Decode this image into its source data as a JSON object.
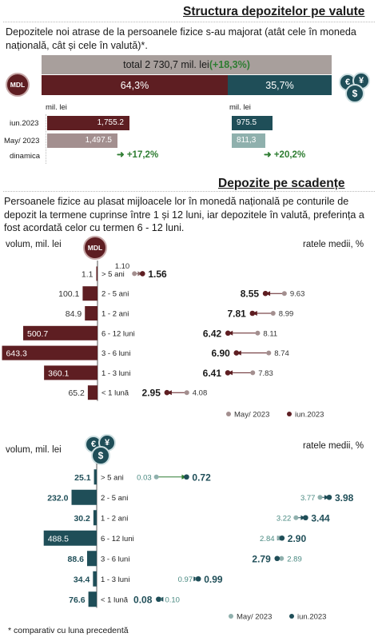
{
  "section1": {
    "title": "Structura depozitelor pe valute",
    "intro": "Depozitele noi atrase de la persoanele fizice s-au majorat (atât cele în moneda națională, cât și cele în valută)*.",
    "total_label": "total 2 730,7 mil. lei ",
    "total_change": "(+18,3%)",
    "mdl_share": "64,3%",
    "fx_share": "35,7%",
    "mdl_share_value": 64.3,
    "fx_share_value": 35.7,
    "mdl_badge": "MDL",
    "fx_badge_1": "€",
    "fx_badge_2": "¥",
    "fx_badge_3": "$",
    "unit_left": "mil. lei",
    "unit_right": "mil. lei",
    "row_labels": [
      "iun.2023",
      "May/ 2023",
      "dinamica"
    ],
    "mdl_values": [
      "1,755.2",
      "1,497.5"
    ],
    "fx_values": [
      "975.5",
      "811,3"
    ],
    "mdl_dynamic": "+17,2%",
    "fx_dynamic": "+20,2%"
  },
  "section2": {
    "title": "Depozite pe scadențe",
    "intro": "Persoanele fizice au plasat mijloacele lor în monedă națională pe conturile de depozit la termene cuprinse între 1 și 12 luni, iar depozitele în valută, preferința a fost acordată celor cu termen 6 - 12 luni.",
    "volume_label": "volum, mil. lei",
    "rate_label": "ratele medii, %",
    "mdl_badge": "MDL",
    "fx_badge_1": "€",
    "fx_badge_2": "¥",
    "fx_badge_3": "$",
    "legend_may": "May/ 2023",
    "legend_jun": "iun.2023",
    "footnote": "* comparativ cu luna precedentă"
  },
  "colors": {
    "mdl_dark": "#5e1e22",
    "mdl_light": "#a38f8f",
    "fx_dark": "#1f4e58",
    "fx_light": "#8fb0ad",
    "total_bar": "#a89f9c",
    "green": "#2e7d32"
  },
  "chart_data": [
    {
      "type": "bar",
      "title": "",
      "categories": [
        "> 5 ani",
        "2 - 5 ani",
        "1 - 2 ani",
        "6 - 12 luni",
        "3 - 6 luni",
        "1 - 3 luni",
        "< 1 lună"
      ],
      "values": [
        1.1,
        100.1,
        84.9,
        500.7,
        643.3,
        360.1,
        65.2
      ],
      "value_labels": [
        "1.1",
        "100.1",
        "84.9",
        "500.7",
        "643.3",
        "360.1",
        "65.2"
      ],
      "xlabel": "volum, mil. lei",
      "xlim": [
        0,
        700
      ]
    },
    {
      "type": "scatter",
      "title": "",
      "categories": [
        "> 5 ani",
        "2 - 5 ani",
        "1 - 2 ani",
        "6 - 12 luni",
        "3 - 6 luni",
        "1 - 3 luni",
        "< 1 lună"
      ],
      "xlabel": "ratele medii, %",
      "xlim": [
        0.5,
        10.5
      ],
      "series": [
        {
          "name": "May/ 2023",
          "values": [
            1.1,
            9.63,
            8.99,
            8.11,
            8.74,
            7.83,
            4.08
          ],
          "labels": [
            "1.10",
            "9.63",
            "8.99",
            "8.11",
            "8.74",
            "7.83",
            "4.08"
          ]
        },
        {
          "name": "iun.2023",
          "values": [
            1.56,
            8.55,
            7.81,
            6.42,
            6.9,
            6.41,
            2.95
          ],
          "labels": [
            "1.56",
            "8.55",
            "7.81",
            "6.42",
            "6.90",
            "6.41",
            "2.95"
          ]
        }
      ]
    },
    {
      "type": "bar",
      "title": "",
      "categories": [
        "> 5 ani",
        "2 - 5 ani",
        "1 - 2 ani",
        "6 - 12 luni",
        "3 - 6 luni",
        "1 - 3 luni",
        "< 1 lună"
      ],
      "values": [
        25.1,
        232.0,
        30.2,
        488.5,
        88.6,
        34.4,
        76.6
      ],
      "value_labels": [
        "25.1",
        "232.0",
        "30.2",
        "488.5",
        "88.6",
        "34.4",
        "76.6"
      ],
      "xlabel": "volum, mil. lei",
      "xlim": [
        0,
        700
      ]
    },
    {
      "type": "scatter",
      "title": "",
      "categories": [
        "> 5 ani",
        "2 - 5 ani",
        "1 - 2 ani",
        "6 - 12 luni",
        "3 - 6 luni",
        "1 - 3 luni",
        "< 1 lună"
      ],
      "xlabel": "ratele medii, %",
      "xlim": [
        0,
        4.2
      ],
      "series": [
        {
          "name": "May/ 2023",
          "values": [
            0.03,
            3.77,
            3.22,
            2.84,
            2.89,
            0.97,
            0.1
          ],
          "labels": [
            "0.03",
            "3.77",
            "3.22",
            "2.84",
            "2.89",
            "0.97",
            "0.10"
          ]
        },
        {
          "name": "iun.2023",
          "values": [
            0.72,
            3.98,
            3.44,
            2.9,
            2.79,
            0.99,
            0.08
          ],
          "labels": [
            "0.72",
            "3.98",
            "3.44",
            "2.90",
            "2.79",
            "0.99",
            "0.08"
          ]
        }
      ]
    }
  ]
}
